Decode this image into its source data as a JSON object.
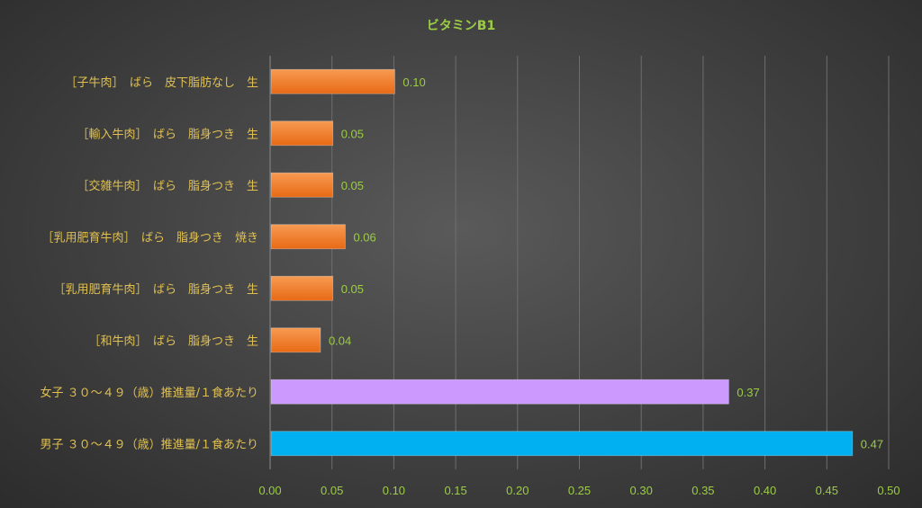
{
  "chart_data": {
    "type": "bar",
    "orientation": "horizontal",
    "title": "ビタミンB1",
    "categories": [
      "［子牛肉］　ばら　皮下脂肪なし　生",
      "［輸入牛肉］　ばら　脂身つき　生",
      "［交雑牛肉］　ばら　脂身つき　生",
      "［乳用肥育牛肉］　ばら　脂身つき　焼き",
      "［乳用肥育牛肉］　ばら　脂身つき　生",
      "［和牛肉］　ばら　脂身つき　生",
      "女子 ３０～４９（歳）推進量/１食あたり",
      "男子 ３０～４９（歳）推進量/１食あたり"
    ],
    "values": [
      0.1,
      0.05,
      0.05,
      0.06,
      0.05,
      0.04,
      0.37,
      0.47
    ],
    "data_labels": [
      "0.10",
      "0.05",
      "0.05",
      "0.06",
      "0.05",
      "0.04",
      "0.37",
      "0.47"
    ],
    "bar_colors": [
      "#f07a28",
      "#f07a28",
      "#f07a28",
      "#f07a28",
      "#f07a28",
      "#f07a28",
      "#cc99ff",
      "#00b0f0"
    ],
    "xlim": [
      0,
      0.5
    ],
    "xticks": [
      "0.00",
      "0.05",
      "0.10",
      "0.15",
      "0.20",
      "0.25",
      "0.30",
      "0.35",
      "0.40",
      "0.45",
      "0.50"
    ],
    "xlabel": "",
    "ylabel": "",
    "grid": true,
    "legend": "none"
  }
}
